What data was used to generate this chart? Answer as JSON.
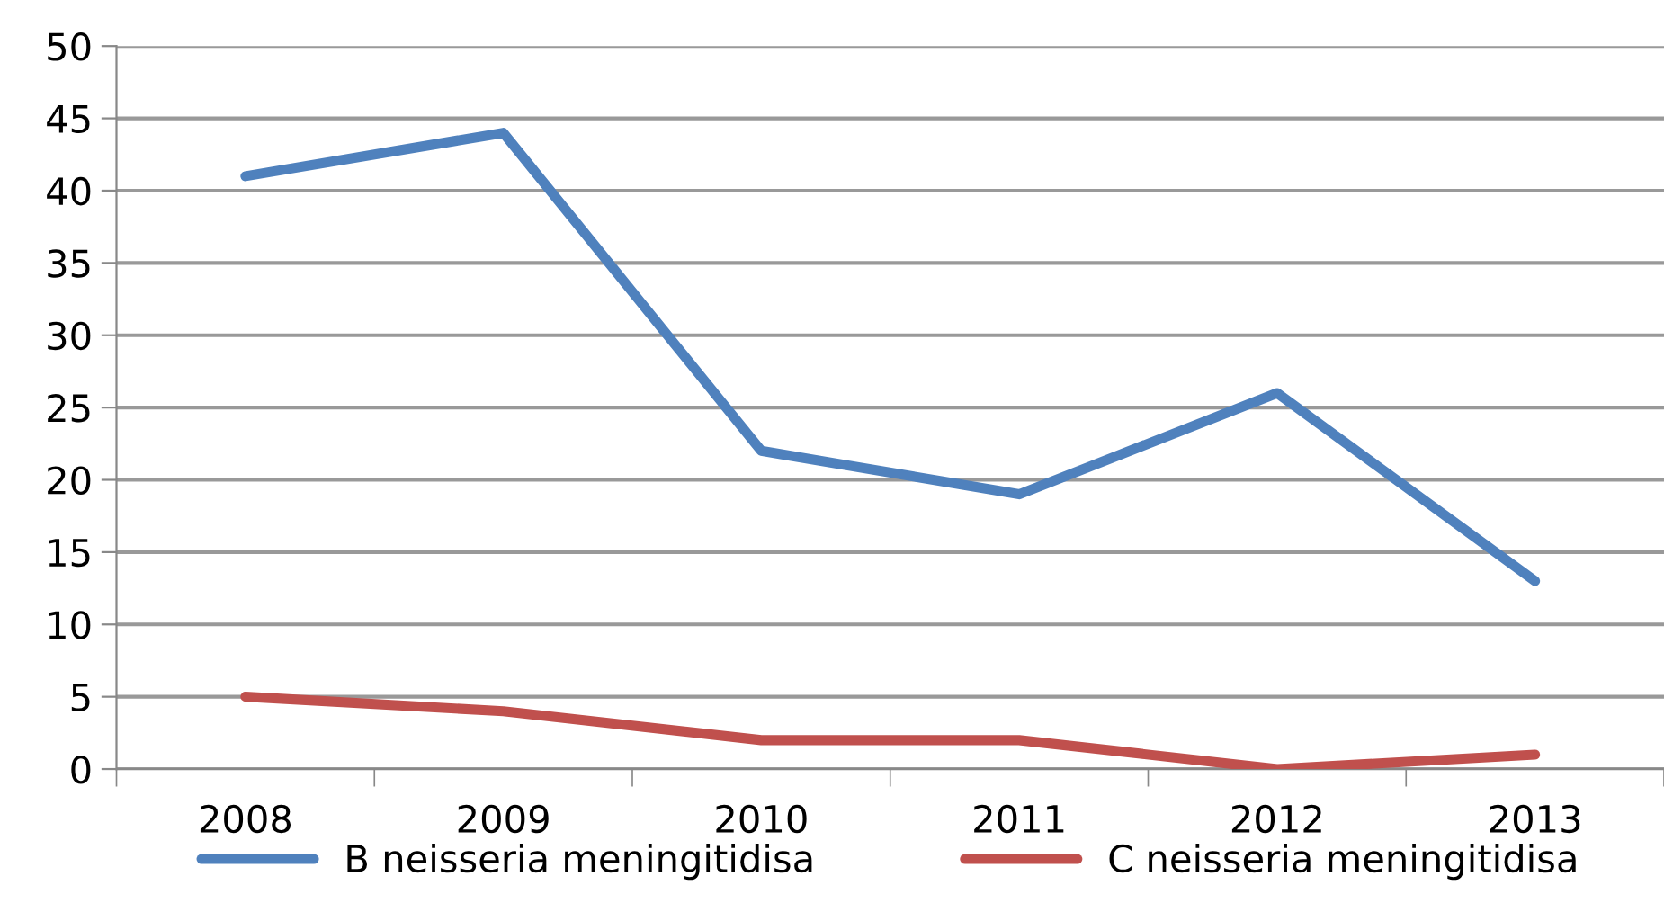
{
  "chart_data": {
    "type": "line",
    "categories": [
      "2008",
      "2009",
      "2010",
      "2011",
      "2012",
      "2013"
    ],
    "series": [
      {
        "name": "B neisseria meningitidisa",
        "color": "#4f81bd",
        "values": [
          41,
          44,
          22,
          19,
          26,
          13
        ]
      },
      {
        "name": "C neisseria meningitidisa",
        "color": "#c0504d",
        "values": [
          5,
          4,
          2,
          2,
          0,
          1
        ]
      }
    ],
    "ylim": [
      0,
      50
    ],
    "yticks": [
      0,
      5,
      10,
      15,
      20,
      25,
      30,
      35,
      40,
      45,
      50
    ],
    "grid": "y",
    "legend": "bottom",
    "marker": "none",
    "line_style": "solid"
  }
}
